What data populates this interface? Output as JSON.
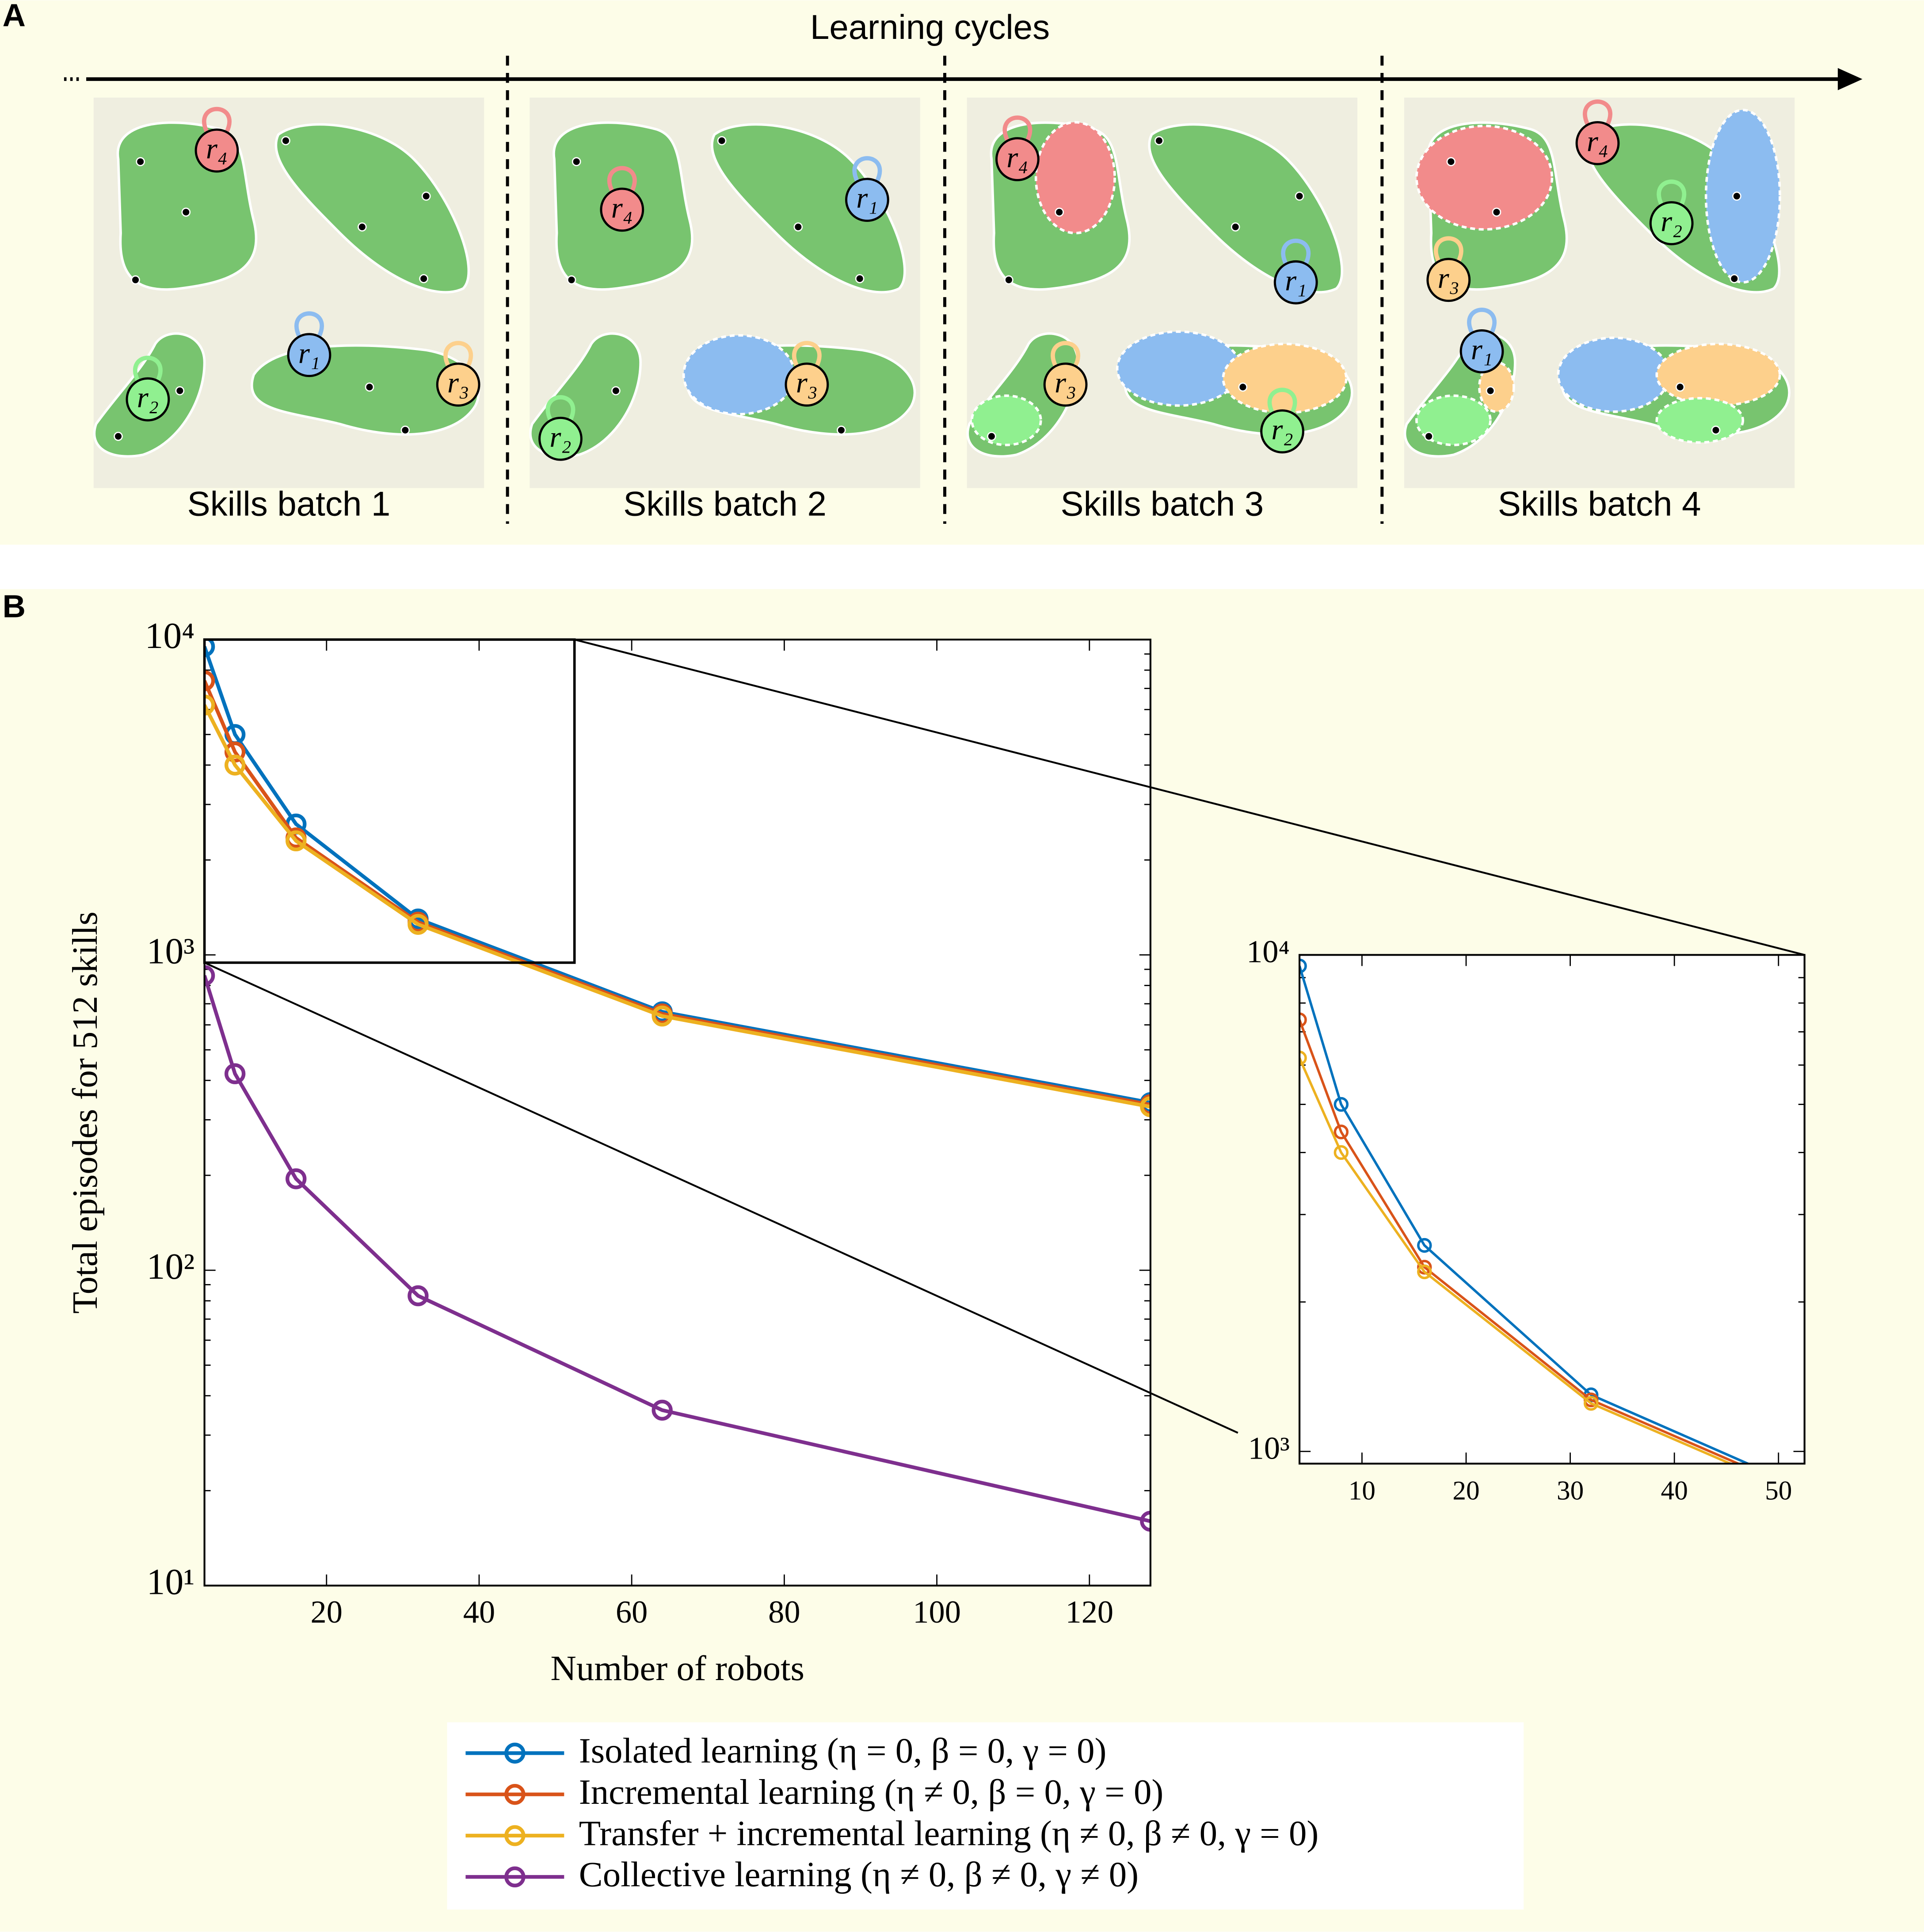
{
  "panel_a": {
    "label": "A",
    "title": "Learning cycles",
    "batches": [
      {
        "label": "Skills batch 1",
        "robots": [
          "r₄",
          "r₁",
          "r₂",
          "r₃"
        ]
      },
      {
        "label": "Skills batch 2",
        "robots": [
          "r₄",
          "r₁",
          "r₃",
          "r₂"
        ]
      },
      {
        "label": "Skills batch 3",
        "robots": [
          "r₄",
          "r₁",
          "r₃",
          "r₂"
        ]
      },
      {
        "label": "Skills batch 4",
        "robots": [
          "r₄",
          "r₂",
          "r₃",
          "r₁"
        ]
      }
    ]
  },
  "panel_b": {
    "label": "B"
  },
  "chart_data": [
    {
      "type": "line",
      "x_label": "Number of robots",
      "y_label": "Total episodes for 512 skills",
      "log_y": true,
      "xlim": [
        4,
        128
      ],
      "ylim": [
        10,
        10000
      ],
      "xticks": [
        20,
        40,
        60,
        80,
        100,
        120
      ],
      "yticks": [
        {
          "value": 10,
          "label": "10¹"
        },
        {
          "value": 100,
          "label": "10²"
        },
        {
          "value": 1000,
          "label": "10³"
        },
        {
          "value": 10000,
          "label": "10⁴"
        }
      ],
      "x": [
        4,
        8,
        16,
        32,
        64,
        128
      ],
      "series": [
        {
          "name": "Isolated learning (η = 0, β = 0, γ = 0)",
          "color": "#0072bd",
          "values": [
            9500,
            5000,
            2600,
            1300,
            660,
            340
          ]
        },
        {
          "name": "Incremental learning (η ≠ 0, β = 0, γ = 0)",
          "color": "#d95319",
          "values": [
            7400,
            4400,
            2350,
            1270,
            650,
            335
          ]
        },
        {
          "name": "Transfer + incremental learning (η ≠ 0, β ≠ 0, γ = 0)",
          "color": "#edb120",
          "values": [
            6200,
            4000,
            2300,
            1250,
            640,
            330
          ]
        },
        {
          "name": "Collective learning (η ≠ 0, β ≠ 0, γ ≠ 0)",
          "color": "#7e2f8e",
          "values": [
            860,
            420,
            195,
            83,
            36,
            16
          ]
        }
      ]
    },
    {
      "type": "line",
      "log_y": true,
      "xlim": [
        4,
        52.5
      ],
      "ylim": [
        945,
        10000
      ],
      "xticks": [
        10,
        20,
        30,
        40,
        50
      ],
      "yticks": [
        {
          "value": 1000,
          "label": "10³"
        },
        {
          "value": 10000,
          "label": "10⁴"
        }
      ],
      "x": [
        4,
        8,
        16,
        32,
        64
      ],
      "series": [
        {
          "color": "#0072bd",
          "values": [
            9500,
            5000,
            2600,
            1300,
            660
          ]
        },
        {
          "color": "#d95319",
          "values": [
            7400,
            4400,
            2350,
            1270,
            650
          ]
        },
        {
          "color": "#edb120",
          "values": [
            6200,
            4000,
            2300,
            1250,
            640
          ]
        }
      ]
    }
  ]
}
